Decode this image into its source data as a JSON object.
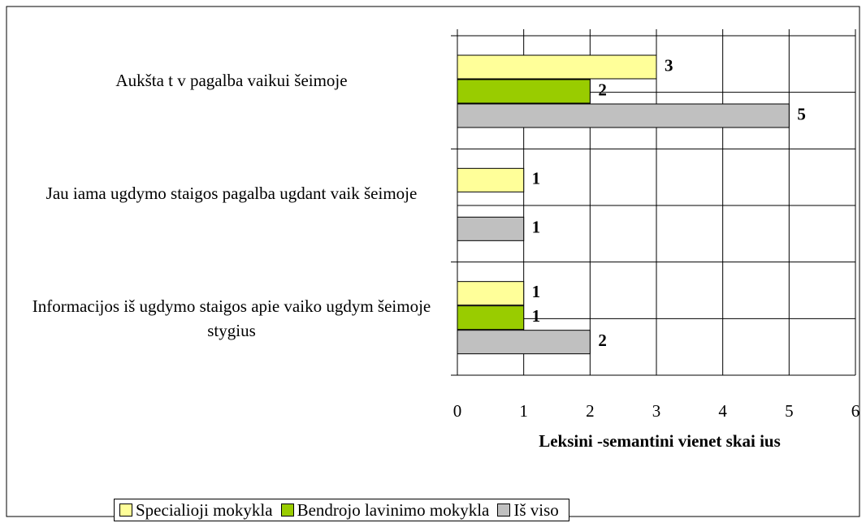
{
  "chart_data": {
    "type": "bar",
    "orientation": "horizontal",
    "x_label": "Leksini -semantini vienet skai ius",
    "categories": [
      "Aukšta t v pagalba vaikui šeimoje",
      "Jau iama ugdymo staigos pagalba ugdant vaik šeimoje",
      "Informacijos iš ugdymo staigos apie vaiko ugdym šeimoje stygius"
    ],
    "series": [
      {
        "name": "Specialioji mokykla",
        "color": "#ffff99",
        "values": [
          3,
          1,
          1
        ]
      },
      {
        "name": "Bendrojo lavinimo mokykla",
        "color": "#99cc00",
        "values": [
          2,
          null,
          1
        ]
      },
      {
        "name": "Iš viso",
        "color": "#c0c0c0",
        "values": [
          5,
          1,
          2
        ]
      }
    ],
    "xlim": [
      0,
      6
    ],
    "xticks": [
      0,
      1,
      2,
      3,
      4,
      5,
      6
    ],
    "grid": true,
    "legend": "bottom"
  }
}
